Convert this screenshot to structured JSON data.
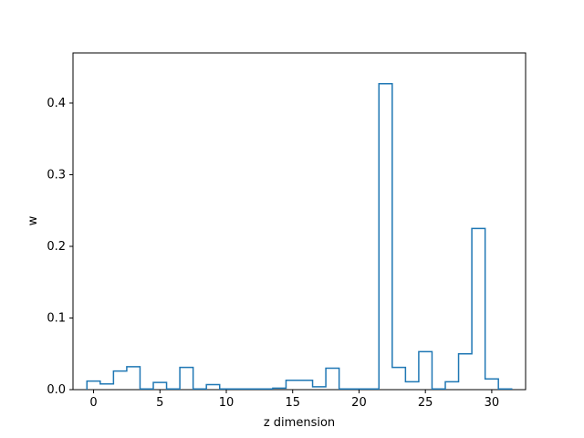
{
  "chart_data": {
    "type": "step",
    "title": "",
    "xlabel": "z dimension",
    "ylabel": "w",
    "xlim": [
      -1.55,
      32.55
    ],
    "ylim": [
      0,
      0.47
    ],
    "xticks": [
      0,
      5,
      10,
      15,
      20,
      25,
      30
    ],
    "yticks": [
      0.0,
      0.1,
      0.2,
      0.3,
      0.4
    ],
    "xtick_labels": [
      "0",
      "5",
      "10",
      "15",
      "20",
      "25",
      "30"
    ],
    "ytick_labels": [
      "0.0",
      "0.1",
      "0.2",
      "0.3",
      "0.4"
    ],
    "grid": false,
    "series": [
      {
        "color": "#1f77b4",
        "x": [
          0,
          1,
          2,
          3,
          4,
          5,
          6,
          7,
          8,
          9,
          10,
          11,
          12,
          13,
          14,
          15,
          16,
          17,
          18,
          19,
          20,
          21,
          22,
          23,
          24,
          25,
          26,
          27,
          28,
          29,
          30,
          31
        ],
        "values": [
          0.012,
          0.008,
          0.026,
          0.032,
          0.001,
          0.01,
          0.001,
          0.031,
          0.001,
          0.007,
          0.001,
          0.001,
          0.001,
          0.001,
          0.002,
          0.013,
          0.013,
          0.004,
          0.03,
          0.001,
          0.001,
          0.001,
          0.427,
          0.031,
          0.011,
          0.053,
          0.001,
          0.011,
          0.05,
          0.225,
          0.015,
          0.001
        ]
      }
    ]
  }
}
